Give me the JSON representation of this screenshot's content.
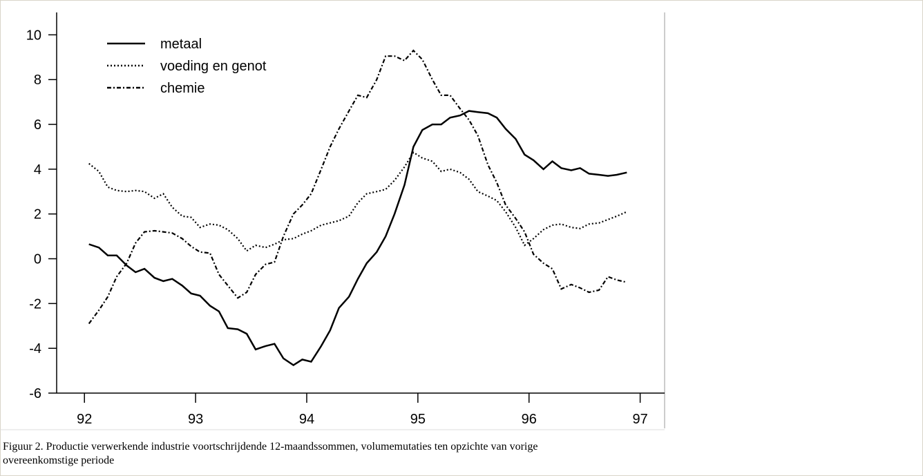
{
  "chart_data": {
    "type": "line",
    "caption": [
      "Figuur 2. Productie verwerkende industrie voortschrijdende 12-maandssommen, volumemutaties ten opzichte van vorige",
      "overeenkomstige periode"
    ],
    "x": [
      92.04,
      92.13,
      92.21,
      92.29,
      92.38,
      92.46,
      92.54,
      92.63,
      92.71,
      92.79,
      92.88,
      92.96,
      93.04,
      93.13,
      93.21,
      93.29,
      93.38,
      93.46,
      93.54,
      93.63,
      93.71,
      93.79,
      93.88,
      93.96,
      94.04,
      94.13,
      94.21,
      94.29,
      94.38,
      94.46,
      94.54,
      94.63,
      94.71,
      94.79,
      94.88,
      94.96,
      95.04,
      95.13,
      95.21,
      95.29,
      95.38,
      95.46,
      95.54,
      95.63,
      95.71,
      95.79,
      95.88,
      95.96,
      96.04,
      96.13,
      96.21,
      96.29,
      96.38,
      96.46,
      96.54,
      96.63,
      96.71,
      96.79,
      96.88
    ],
    "series": [
      {
        "name": "metaal",
        "color": "#000000",
        "dash": "solid",
        "values": [
          0.65,
          0.5,
          0.15,
          0.15,
          -0.3,
          -0.6,
          -0.45,
          -0.85,
          -1.0,
          -0.9,
          -1.2,
          -1.55,
          -1.65,
          -2.1,
          -2.35,
          -3.1,
          -3.15,
          -3.35,
          -4.05,
          -3.9,
          -3.8,
          -4.45,
          -4.75,
          -4.5,
          -4.6,
          -3.9,
          -3.2,
          -2.2,
          -1.7,
          -0.9,
          -0.2,
          0.3,
          1.0,
          2.0,
          3.3,
          5.0,
          5.75,
          6.0,
          6.0,
          6.3,
          6.4,
          6.6,
          6.55,
          6.5,
          6.3,
          5.8,
          5.35,
          4.65,
          4.4,
          4.0,
          4.35,
          4.05,
          3.95,
          4.05,
          3.8,
          3.75,
          3.7,
          3.75,
          3.85
        ]
      },
      {
        "name": "voeding en genot",
        "color": "#000000",
        "dash": "dotted",
        "values": [
          4.25,
          3.9,
          3.2,
          3.05,
          3.0,
          3.05,
          3.0,
          2.7,
          2.9,
          2.3,
          1.9,
          1.85,
          1.4,
          1.55,
          1.5,
          1.3,
          0.9,
          0.35,
          0.6,
          0.5,
          0.65,
          0.85,
          0.9,
          1.1,
          1.25,
          1.5,
          1.6,
          1.7,
          1.9,
          2.5,
          2.9,
          3.0,
          3.1,
          3.5,
          4.1,
          4.75,
          4.5,
          4.35,
          3.9,
          4.0,
          3.85,
          3.55,
          3.0,
          2.8,
          2.6,
          2.1,
          1.4,
          0.6,
          0.9,
          1.3,
          1.5,
          1.55,
          1.4,
          1.35,
          1.55,
          1.6,
          1.75,
          1.9,
          2.1
        ]
      },
      {
        "name": "chemie",
        "color": "#000000",
        "dash": "dashdot",
        "values": [
          -2.9,
          -2.3,
          -1.7,
          -0.8,
          -0.2,
          0.7,
          1.2,
          1.25,
          1.2,
          1.15,
          0.9,
          0.55,
          0.3,
          0.25,
          -0.7,
          -1.2,
          -1.75,
          -1.5,
          -0.7,
          -0.25,
          -0.15,
          1.0,
          2.0,
          2.4,
          2.9,
          4.0,
          5.0,
          5.8,
          6.6,
          7.3,
          7.2,
          8.0,
          9.05,
          9.05,
          8.85,
          9.3,
          8.9,
          8.0,
          7.3,
          7.3,
          6.7,
          6.2,
          5.5,
          4.2,
          3.4,
          2.4,
          1.8,
          1.2,
          0.2,
          -0.2,
          -0.45,
          -1.35,
          -1.15,
          -1.3,
          -1.5,
          -1.4,
          -0.8,
          -0.95,
          -1.05
        ]
      }
    ],
    "xlim": [
      91.75,
      97.22
    ],
    "ylim": [
      -6,
      11
    ],
    "xticks": [
      92,
      93,
      94,
      95,
      96,
      97
    ],
    "yticks": [
      -6,
      -4,
      -2,
      0,
      2,
      4,
      6,
      8,
      10
    ],
    "legend": "upper left"
  }
}
